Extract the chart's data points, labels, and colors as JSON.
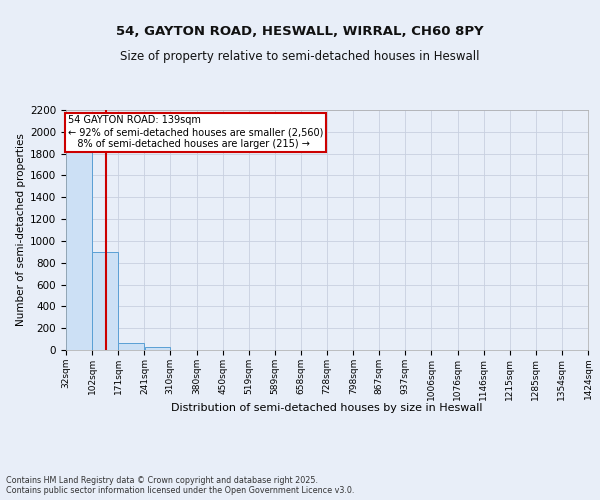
{
  "title_line1": "54, GAYTON ROAD, HESWALL, WIRRAL, CH60 8PY",
  "title_line2": "Size of property relative to semi-detached houses in Heswall",
  "xlabel": "Distribution of semi-detached houses by size in Heswall",
  "ylabel": "Number of semi-detached properties",
  "bins": [
    32,
    102,
    171,
    241,
    310,
    380,
    450,
    519,
    589,
    658,
    728,
    798,
    867,
    937,
    1006,
    1076,
    1146,
    1215,
    1285,
    1354,
    1424
  ],
  "bin_labels": [
    "32sqm",
    "102sqm",
    "171sqm",
    "241sqm",
    "310sqm",
    "380sqm",
    "450sqm",
    "519sqm",
    "589sqm",
    "658sqm",
    "728sqm",
    "798sqm",
    "867sqm",
    "937sqm",
    "1006sqm",
    "1076sqm",
    "1146sqm",
    "1215sqm",
    "1285sqm",
    "1354sqm",
    "1424sqm"
  ],
  "counts": [
    2000,
    900,
    60,
    30,
    0,
    0,
    0,
    0,
    0,
    0,
    0,
    0,
    0,
    0,
    0,
    0,
    0,
    0,
    0,
    0
  ],
  "bar_color": "#cce0f5",
  "bar_edge_color": "#5a9fd4",
  "vline_x": 139,
  "vline_color": "#cc0000",
  "ylim": [
    0,
    2200
  ],
  "yticks": [
    0,
    200,
    400,
    600,
    800,
    1000,
    1200,
    1400,
    1600,
    1800,
    2000,
    2200
  ],
  "annotation_line1": "54 GAYTON ROAD: 139sqm",
  "annotation_line2": "← 92% of semi-detached houses are smaller (2,560)",
  "annotation_line3": "   8% of semi-detached houses are larger (215) →",
  "annotation_box_color": "#ffffff",
  "annotation_box_edge_color": "#cc0000",
  "footer_text": "Contains HM Land Registry data © Crown copyright and database right 2025.\nContains public sector information licensed under the Open Government Licence v3.0.",
  "background_color": "#e8eef8",
  "grid_color": "#c8d0e0",
  "title1_fontsize": 9.5,
  "title2_fontsize": 8.5
}
